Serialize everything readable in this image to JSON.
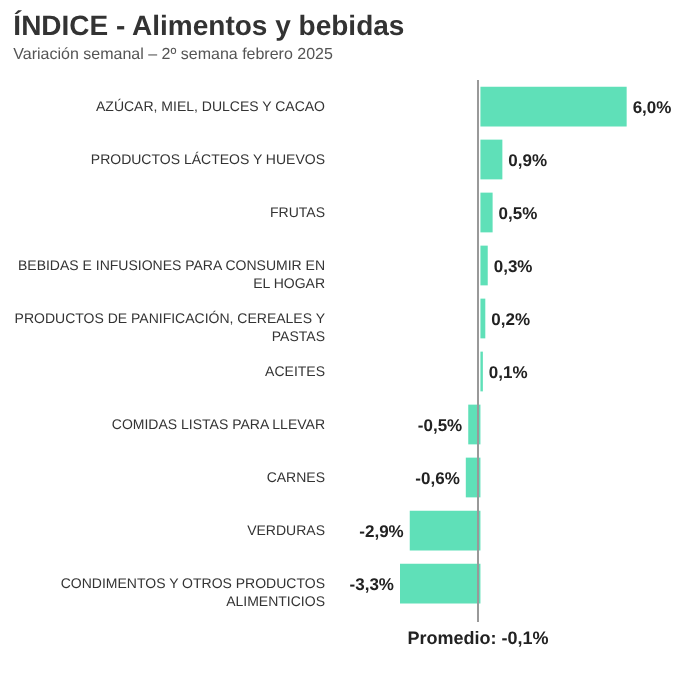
{
  "chart_data": {
    "type": "bar",
    "orientation": "horizontal",
    "title": "ÍNDICE - Alimentos y bebidas",
    "subtitle": "Variación semanal – 2º semana febrero 2025",
    "categories": [
      "AZÚCAR, MIEL, DULCES Y CACAO",
      "PRODUCTOS LÁCTEOS Y HUEVOS",
      "FRUTAS",
      "BEBIDAS E INFUSIONES PARA CONSUMIR EN EL HOGAR",
      "PRODUCTOS DE PANIFICACIÓN, CEREALES Y PASTAS",
      "ACEITES",
      "COMIDAS LISTAS PARA LLEVAR",
      "CARNES",
      "VERDURAS",
      "CONDIMENTOS Y OTROS PRODUCTOS ALIMENTICIOS"
    ],
    "values": [
      6.0,
      0.9,
      0.5,
      0.3,
      0.2,
      0.1,
      -0.5,
      -0.6,
      -2.9,
      -3.3
    ],
    "value_labels": [
      "6,0%",
      "0,9%",
      "0,5%",
      "0,3%",
      "0,2%",
      "0,1%",
      "-0,5%",
      "-0,6%",
      "-2,9%",
      "-3,3%"
    ],
    "color": "#5fe0b8",
    "ref_lines": [
      {
        "axis": "x",
        "value": -0.1,
        "label": "Promedio: -0,1%",
        "color": "#999999"
      }
    ]
  }
}
